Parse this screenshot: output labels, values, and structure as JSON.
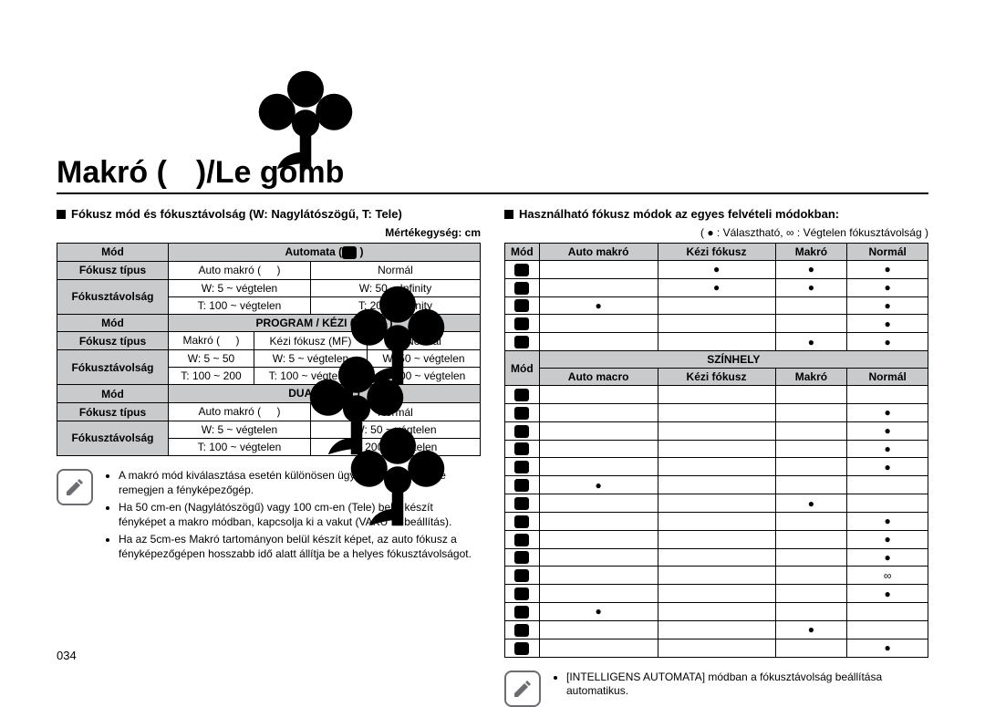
{
  "title_prefix": "Makró (",
  "title_suffix": ")/Le gomb",
  "left": {
    "heading": "Fókusz mód és fókusztávolság (W: Nagylátószögű, T: Tele)",
    "unit": "Mértékegység: cm",
    "labels": {
      "mode": "Mód",
      "focus_type": "Fókusz típus",
      "focus_dist": "Fókusztávolság",
      "automata": "Automata (",
      "program_kezi": "PROGRAM / KÉZI (",
      "dual_is": "DUAL IS (",
      "auto_makro": "Auto makró (",
      "makro": "Makró (",
      "kezi_fokusz": "Kézi fókusz (MF)",
      "normal": "Normál",
      "close_paren": " )"
    },
    "auto": {
      "am_w": "W: 5 ~ végtelen",
      "am_t": "T: 100 ~ végtelen",
      "n_w": "W: 50 ~ Infinity",
      "n_t": "T: 200 ~ Infinity"
    },
    "pk": {
      "m_w": "W: 5 ~ 50",
      "m_t": "T: 100 ~ 200",
      "k_w": "W: 5 ~ végtelen",
      "k_t": "T: 100 ~ végtelen",
      "n_w": "W: 50 ~ végtelen",
      "n_t": "T: 200 ~ végtelen"
    },
    "dual": {
      "am_w": "W: 5 ~ végtelen",
      "am_t": "T: 100 ~ végtelen",
      "n_w": "W: 50 ~ végtelen",
      "n_t": "T: 200 ~ végtelen"
    },
    "notes": [
      "A makró mód kiválasztása esetén különösen ügyeljen arra, hogy ne remegjen a fényképezőgép.",
      "Ha 50 cm-en (Nagylátószögű) vagy 100 cm-en (Tele) belül készít fényképet a makro módban, kapcsolja ki a vakut (VAKU KI beállítás).",
      "Ha az 5cm-es Makró tartományon belül készít képet, az auto fókusz a fényképezőgépen hosszabb idő alatt állítja be a helyes fókusztávolságot."
    ]
  },
  "right": {
    "heading": "Használható fókusz módok az egyes felvételi módokban:",
    "legend_a": "Választható,",
    "legend_b": "Végtelen fókusztávolság",
    "cols": {
      "mode": "Mód",
      "auto_makro": "Auto makró",
      "kezi": "Kézi fókusz",
      "makro": "Makró",
      "normal": "Normál",
      "scene": "SZÍNHELY",
      "auto_macro_en": "Auto macro"
    },
    "top_rows": [
      [
        "",
        "",
        "dot",
        "dot",
        "dot"
      ],
      [
        "",
        "",
        "dot",
        "dot",
        "dot"
      ],
      [
        "",
        "dot",
        "",
        "",
        "dot"
      ],
      [
        "",
        "",
        "",
        "",
        "dot"
      ],
      [
        "",
        "",
        "",
        "dot",
        "dot"
      ]
    ],
    "scene_rows": [
      [
        "",
        "",
        "",
        "",
        ""
      ],
      [
        "",
        "",
        "",
        "",
        "dot"
      ],
      [
        "",
        "",
        "",
        "",
        "dot"
      ],
      [
        "",
        "",
        "",
        "",
        "dot"
      ],
      [
        "",
        "",
        "",
        "",
        "dot"
      ],
      [
        "",
        "dot",
        "",
        "",
        ""
      ],
      [
        "",
        "",
        "",
        "dot",
        ""
      ],
      [
        "",
        "",
        "",
        "",
        "dot"
      ],
      [
        "",
        "",
        "",
        "",
        "dot"
      ],
      [
        "",
        "",
        "",
        "",
        "dot"
      ],
      [
        "",
        "",
        "",
        "",
        "inf"
      ],
      [
        "",
        "",
        "",
        "",
        "dot"
      ],
      [
        "",
        "dot",
        "",
        "",
        ""
      ],
      [
        "",
        "",
        "",
        "dot",
        ""
      ],
      [
        "",
        "",
        "",
        "",
        "dot"
      ]
    ],
    "note": "[INTELLIGENS AUTOMATA] módban a fókusztávolság beállítása automatikus."
  },
  "page_num": "034",
  "colors": {
    "header_bg": "#c9cacc"
  }
}
